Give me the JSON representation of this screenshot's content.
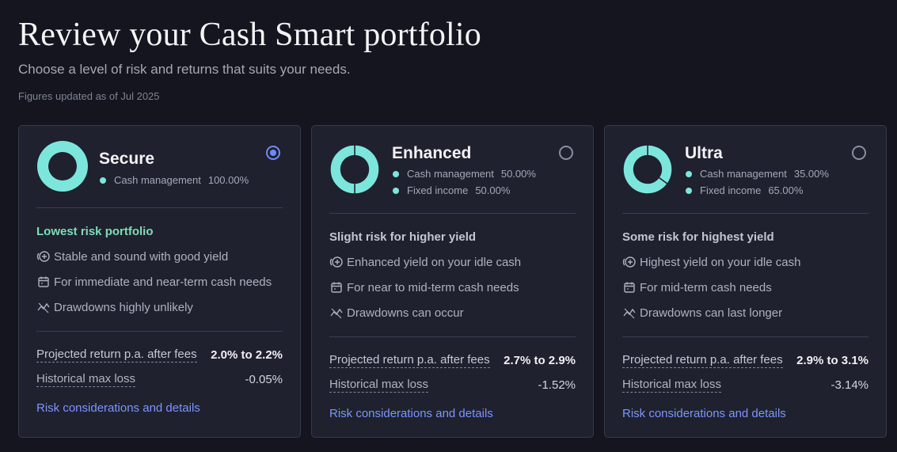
{
  "header": {
    "title": "Review your Cash Smart portfolio",
    "subtitle": "Choose a level of risk and returns that suits your needs.",
    "updated": "Figures updated as of Jul 2025"
  },
  "colors": {
    "cash": "#7de6dc",
    "fixed": "#7de6dc",
    "accent": "#6b8cff",
    "lowest_risk": "#7fdcb5"
  },
  "cards": [
    {
      "name": "Secure",
      "selected": true,
      "allocations": [
        {
          "label": "Cash management",
          "pct": "100.00%",
          "value": 100
        }
      ],
      "risk_title": "Lowest risk portfolio",
      "features": [
        {
          "icon": "yield-plus-icon",
          "text": "Stable and sound with good yield"
        },
        {
          "icon": "calendar-icon",
          "text": "For immediate and near-term cash needs"
        },
        {
          "icon": "drawdown-chart-icon",
          "text": "Drawdowns highly unlikely"
        }
      ],
      "projected_label": "Projected return p.a. after fees",
      "projected_value": "2.0% to 2.2%",
      "loss_label": "Historical max loss",
      "loss_value": "-0.05%",
      "link": "Risk considerations and details"
    },
    {
      "name": "Enhanced",
      "selected": false,
      "allocations": [
        {
          "label": "Cash management",
          "pct": "50.00%",
          "value": 50
        },
        {
          "label": "Fixed income",
          "pct": "50.00%",
          "value": 50
        }
      ],
      "risk_title": "Slight risk for higher yield",
      "features": [
        {
          "icon": "yield-plus-icon",
          "text": "Enhanced yield on your idle cash"
        },
        {
          "icon": "calendar-icon",
          "text": "For near to mid-term cash needs"
        },
        {
          "icon": "drawdown-chart-icon",
          "text": "Drawdowns can occur"
        }
      ],
      "projected_label": "Projected return p.a. after fees",
      "projected_value": "2.7% to 2.9%",
      "loss_label": "Historical max loss",
      "loss_value": "-1.52%",
      "link": "Risk considerations and details"
    },
    {
      "name": "Ultra",
      "selected": false,
      "allocations": [
        {
          "label": "Cash management",
          "pct": "35.00%",
          "value": 35
        },
        {
          "label": "Fixed income",
          "pct": "65.00%",
          "value": 65
        }
      ],
      "risk_title": "Some risk for highest yield",
      "features": [
        {
          "icon": "yield-plus-icon",
          "text": "Highest yield on your idle cash"
        },
        {
          "icon": "calendar-icon",
          "text": "For mid-term cash needs"
        },
        {
          "icon": "drawdown-chart-icon",
          "text": "Drawdowns can last longer"
        }
      ],
      "projected_label": "Projected return p.a. after fees",
      "projected_value": "2.9% to 3.1%",
      "loss_label": "Historical max loss",
      "loss_value": "-3.14%",
      "link": "Risk considerations and details"
    }
  ]
}
